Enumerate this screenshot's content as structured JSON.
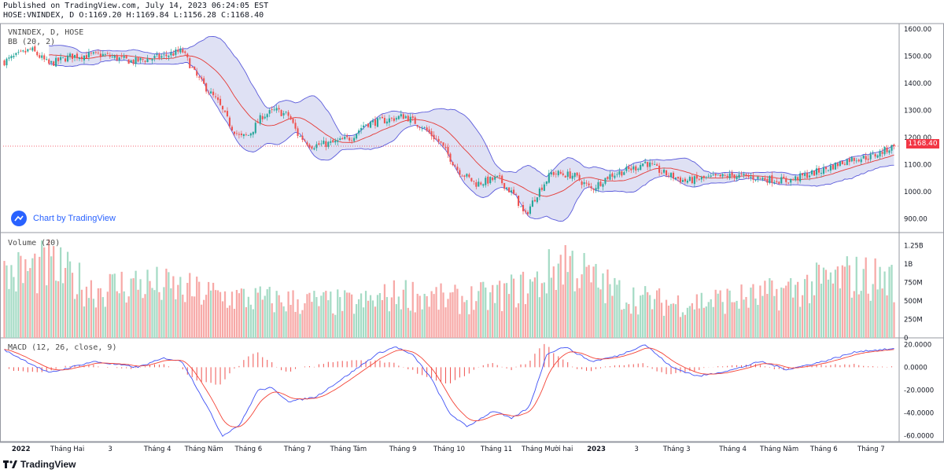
{
  "header": {
    "published": "Published on TradingView.com, July 14, 2023 06:24:05 EST",
    "ohlc": "HOSE:VNINDEX, D O:1169.20 H:1169.84 L:1156.28 C:1168.40"
  },
  "labels": {
    "symbol": "VNINDEX, D, HOSE",
    "bb": "BB (20, 2)",
    "volume": "Volume (20)",
    "macd": "MACD (12, 26, close, 9)",
    "brand": "Chart by TradingView",
    "footer": "TradingView",
    "last_price": "1168.40"
  },
  "colors": {
    "up": "#26a69a",
    "down": "#ef5350",
    "band_fill": "#d1d4f0",
    "band_line": "#5b5bdb",
    "basis": "#e53935",
    "macd_line": "#3f51f5",
    "signal_line": "#f44336",
    "last_price_line": "#f23645"
  },
  "chart_data": [
    {
      "type": "candlestick",
      "title": "VNINDEX, D, HOSE",
      "ylim": [
        850,
        1620
      ],
      "y_ticks": [
        "1600.00",
        "1500.00",
        "1400.00",
        "1300.00",
        "1200.00",
        "1100.00",
        "1000.00",
        "900.00"
      ],
      "last_price": 1168.4,
      "x_tick_labels": [
        "2022",
        "Tháng Hai",
        "3",
        "Tháng 4",
        "Tháng Năm",
        "Tháng 6",
        "Tháng 7",
        "Tháng Tám",
        "Tháng 9",
        "Tháng 10",
        "Tháng 11",
        "Tháng Mười hai",
        "2023",
        "3",
        "Tháng 3",
        "Tháng 4",
        "Tháng Năm",
        "Tháng 6",
        "Tháng 7"
      ],
      "close_path": [
        {
          "t": 0,
          "v": 1480
        },
        {
          "t": 0.03,
          "v": 1525
        },
        {
          "t": 0.05,
          "v": 1470
        },
        {
          "t": 0.075,
          "v": 1500
        },
        {
          "t": 0.11,
          "v": 1505
        },
        {
          "t": 0.145,
          "v": 1480
        },
        {
          "t": 0.18,
          "v": 1500
        },
        {
          "t": 0.2,
          "v": 1520
        },
        {
          "t": 0.215,
          "v": 1430
        },
        {
          "t": 0.24,
          "v": 1330
        },
        {
          "t": 0.255,
          "v": 1240
        },
        {
          "t": 0.265,
          "v": 1200
        },
        {
          "t": 0.275,
          "v": 1210
        },
        {
          "t": 0.29,
          "v": 1280
        },
        {
          "t": 0.305,
          "v": 1300
        },
        {
          "t": 0.32,
          "v": 1280
        },
        {
          "t": 0.33,
          "v": 1210
        },
        {
          "t": 0.345,
          "v": 1170
        },
        {
          "t": 0.37,
          "v": 1180
        },
        {
          "t": 0.39,
          "v": 1200
        },
        {
          "t": 0.405,
          "v": 1250
        },
        {
          "t": 0.43,
          "v": 1265
        },
        {
          "t": 0.45,
          "v": 1280
        },
        {
          "t": 0.47,
          "v": 1240
        },
        {
          "t": 0.49,
          "v": 1180
        },
        {
          "t": 0.51,
          "v": 1080
        },
        {
          "t": 0.53,
          "v": 1030
        },
        {
          "t": 0.555,
          "v": 1050
        },
        {
          "t": 0.575,
          "v": 980
        },
        {
          "t": 0.585,
          "v": 910
        },
        {
          "t": 0.6,
          "v": 1000
        },
        {
          "t": 0.615,
          "v": 1070
        },
        {
          "t": 0.64,
          "v": 1060
        },
        {
          "t": 0.66,
          "v": 1010
        },
        {
          "t": 0.68,
          "v": 1060
        },
        {
          "t": 0.71,
          "v": 1090
        },
        {
          "t": 0.72,
          "v": 1110
        },
        {
          "t": 0.74,
          "v": 1070
        },
        {
          "t": 0.765,
          "v": 1040
        },
        {
          "t": 0.79,
          "v": 1050
        },
        {
          "t": 0.82,
          "v": 1060
        },
        {
          "t": 0.85,
          "v": 1050
        },
        {
          "t": 0.88,
          "v": 1040
        },
        {
          "t": 0.9,
          "v": 1060
        },
        {
          "t": 0.92,
          "v": 1080
        },
        {
          "t": 0.95,
          "v": 1120
        },
        {
          "t": 0.975,
          "v": 1130
        },
        {
          "t": 1.0,
          "v": 1168.4
        }
      ]
    },
    {
      "type": "bar",
      "title": "Volume (20)",
      "ylim": [
        0,
        1350
      ],
      "y_ticks": [
        "1.25B",
        "1B",
        "750M",
        "500M",
        "250M",
        "0"
      ],
      "volume_path": [
        {
          "t": 0,
          "v": 900
        },
        {
          "t": 0.05,
          "v": 1050
        },
        {
          "t": 0.1,
          "v": 700
        },
        {
          "t": 0.15,
          "v": 800
        },
        {
          "t": 0.2,
          "v": 700
        },
        {
          "t": 0.25,
          "v": 600
        },
        {
          "t": 0.3,
          "v": 550
        },
        {
          "t": 0.35,
          "v": 520
        },
        {
          "t": 0.4,
          "v": 500
        },
        {
          "t": 0.45,
          "v": 650
        },
        {
          "t": 0.5,
          "v": 550
        },
        {
          "t": 0.55,
          "v": 600
        },
        {
          "t": 0.6,
          "v": 800
        },
        {
          "t": 0.63,
          "v": 1150
        },
        {
          "t": 0.66,
          "v": 850
        },
        {
          "t": 0.7,
          "v": 600
        },
        {
          "t": 0.75,
          "v": 500
        },
        {
          "t": 0.8,
          "v": 550
        },
        {
          "t": 0.85,
          "v": 600
        },
        {
          "t": 0.9,
          "v": 750
        },
        {
          "t": 0.95,
          "v": 900
        },
        {
          "t": 1.0,
          "v": 850
        }
      ]
    },
    {
      "type": "line",
      "title": "MACD (12, 26, close, 9)",
      "ylim": [
        -65,
        25
      ],
      "y_ticks": [
        "20.0000",
        "0.0000",
        "-20.0000",
        "-40.0000",
        "-60.0000"
      ],
      "macd_path": [
        {
          "t": 0,
          "v": 15
        },
        {
          "t": 0.05,
          "v": -5
        },
        {
          "t": 0.1,
          "v": 5
        },
        {
          "t": 0.15,
          "v": 0
        },
        {
          "t": 0.18,
          "v": 8
        },
        {
          "t": 0.2,
          "v": 5
        },
        {
          "t": 0.225,
          "v": -30
        },
        {
          "t": 0.245,
          "v": -60
        },
        {
          "t": 0.265,
          "v": -50
        },
        {
          "t": 0.285,
          "v": -20
        },
        {
          "t": 0.3,
          "v": -18
        },
        {
          "t": 0.32,
          "v": -30
        },
        {
          "t": 0.35,
          "v": -26
        },
        {
          "t": 0.38,
          "v": -10
        },
        {
          "t": 0.42,
          "v": 12
        },
        {
          "t": 0.44,
          "v": 18
        },
        {
          "t": 0.46,
          "v": 10
        },
        {
          "t": 0.48,
          "v": -10
        },
        {
          "t": 0.5,
          "v": -40
        },
        {
          "t": 0.52,
          "v": -52
        },
        {
          "t": 0.55,
          "v": -38
        },
        {
          "t": 0.57,
          "v": -45
        },
        {
          "t": 0.59,
          "v": -35
        },
        {
          "t": 0.61,
          "v": 12
        },
        {
          "t": 0.63,
          "v": 18
        },
        {
          "t": 0.66,
          "v": 5
        },
        {
          "t": 0.69,
          "v": 10
        },
        {
          "t": 0.72,
          "v": 20
        },
        {
          "t": 0.75,
          "v": 0
        },
        {
          "t": 0.78,
          "v": -8
        },
        {
          "t": 0.82,
          "v": -2
        },
        {
          "t": 0.85,
          "v": 5
        },
        {
          "t": 0.88,
          "v": -2
        },
        {
          "t": 0.92,
          "v": 5
        },
        {
          "t": 0.96,
          "v": 14
        },
        {
          "t": 1.0,
          "v": 16
        }
      ]
    }
  ]
}
